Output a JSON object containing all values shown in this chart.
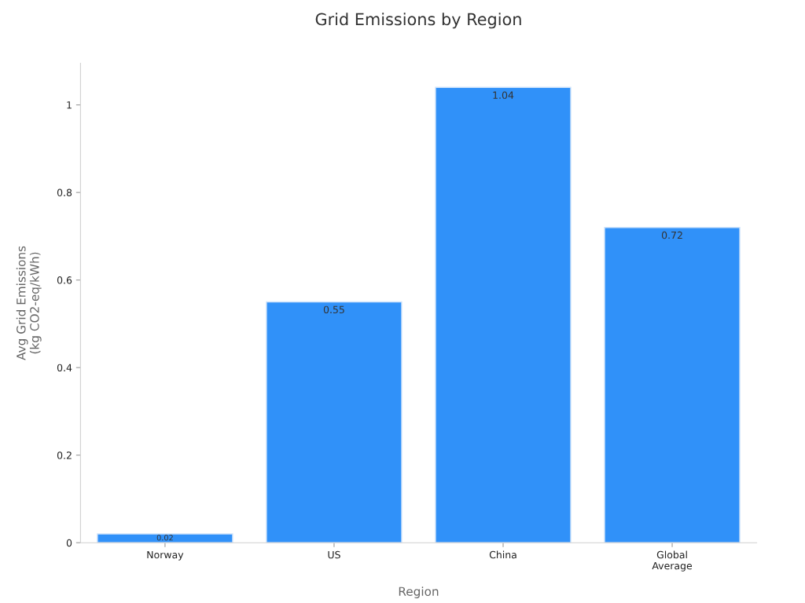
{
  "chart_data": {
    "type": "bar",
    "title": "Grid Emissions by Region",
    "xlabel": "Region",
    "ylabel": "Avg Grid Emissions\n(kg CO2-eq/kWh)",
    "categories": [
      "Norway",
      "US",
      "China",
      "Global\nAverage"
    ],
    "values": [
      0.02,
      0.55,
      1.04,
      0.72
    ],
    "color": "#3091f9",
    "ylim": [
      0,
      1.095
    ],
    "yticks": [
      0,
      {
        "value": 0.2,
        "label": "0.2"
      },
      {
        "value": 0.4,
        "label": "0.4"
      },
      {
        "value": 0.6,
        "label": "0.6"
      },
      {
        "value": 0.8,
        "label": "0.8"
      },
      1
    ],
    "data_labels": true,
    "grid": false
  }
}
